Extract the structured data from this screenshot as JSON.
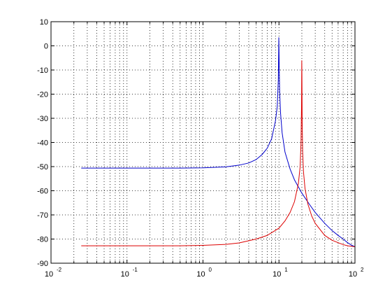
{
  "chart_data": {
    "type": "line",
    "title": "",
    "xlabel": "",
    "ylabel": "",
    "xscale": "log",
    "xlim": [
      0.01,
      100
    ],
    "ylim": [
      -90,
      10
    ],
    "grid": true,
    "x_ticks": [
      {
        "base": "10",
        "exp": "-2",
        "value": 0.01
      },
      {
        "base": "10",
        "exp": "-1",
        "value": 0.1
      },
      {
        "base": "10",
        "exp": "0",
        "value": 1
      },
      {
        "base": "10",
        "exp": "1",
        "value": 10
      },
      {
        "base": "10",
        "exp": "2",
        "value": 100
      }
    ],
    "y_ticks": [
      "10",
      "0",
      "-10",
      "-20",
      "-30",
      "-40",
      "-50",
      "-60",
      "-70",
      "-80",
      "-90"
    ],
    "series": [
      {
        "color": "#0000cc",
        "points": [
          [
            0.025,
            -50.6
          ],
          [
            0.1,
            -50.6
          ],
          [
            0.5,
            -50.6
          ],
          [
            1,
            -50.5
          ],
          [
            2,
            -50.1
          ],
          [
            3,
            -49.4
          ],
          [
            4,
            -48.5
          ],
          [
            5,
            -47.1
          ],
          [
            6,
            -45.0
          ],
          [
            7,
            -42.4
          ],
          [
            8,
            -38.5
          ],
          [
            9,
            -31.0
          ],
          [
            9.5,
            -25.0
          ],
          [
            9.8,
            -14.0
          ],
          [
            9.95,
            3.5
          ],
          [
            10.05,
            -6.0
          ],
          [
            10.2,
            -19.0
          ],
          [
            10.5,
            -28.0
          ],
          [
            11,
            -36.0
          ],
          [
            12,
            -44.0
          ],
          [
            14,
            -51.0
          ],
          [
            16,
            -55.5
          ],
          [
            20,
            -61.0
          ],
          [
            25,
            -65.5
          ],
          [
            30,
            -69.0
          ],
          [
            40,
            -73.5
          ],
          [
            50,
            -76.5
          ],
          [
            60,
            -78.5
          ],
          [
            70,
            -80.0
          ],
          [
            80,
            -81.5
          ],
          [
            90,
            -82.5
          ],
          [
            100,
            -83.2
          ]
        ]
      },
      {
        "color": "#dd0000",
        "points": [
          [
            0.025,
            -82.8
          ],
          [
            0.1,
            -82.8
          ],
          [
            0.5,
            -82.8
          ],
          [
            1,
            -82.6
          ],
          [
            2,
            -82.2
          ],
          [
            3,
            -81.6
          ],
          [
            5,
            -80.0
          ],
          [
            7,
            -78.5
          ],
          [
            10,
            -75.5
          ],
          [
            12,
            -72.5
          ],
          [
            14,
            -69.0
          ],
          [
            16,
            -64.5
          ],
          [
            18,
            -57.0
          ],
          [
            19,
            -50.0
          ],
          [
            19.5,
            -40.0
          ],
          [
            19.8,
            -25.0
          ],
          [
            19.95,
            -6.0
          ],
          [
            20.05,
            -12.0
          ],
          [
            20.2,
            -32.0
          ],
          [
            20.5,
            -44.0
          ],
          [
            21,
            -52.0
          ],
          [
            22,
            -59.0
          ],
          [
            24,
            -65.5
          ],
          [
            27,
            -70.5
          ],
          [
            30,
            -73.5
          ],
          [
            40,
            -78.5
          ],
          [
            50,
            -80.5
          ],
          [
            60,
            -81.5
          ],
          [
            70,
            -82.3
          ],
          [
            80,
            -82.8
          ],
          [
            90,
            -83.0
          ],
          [
            100,
            -83.2
          ]
        ]
      }
    ]
  }
}
